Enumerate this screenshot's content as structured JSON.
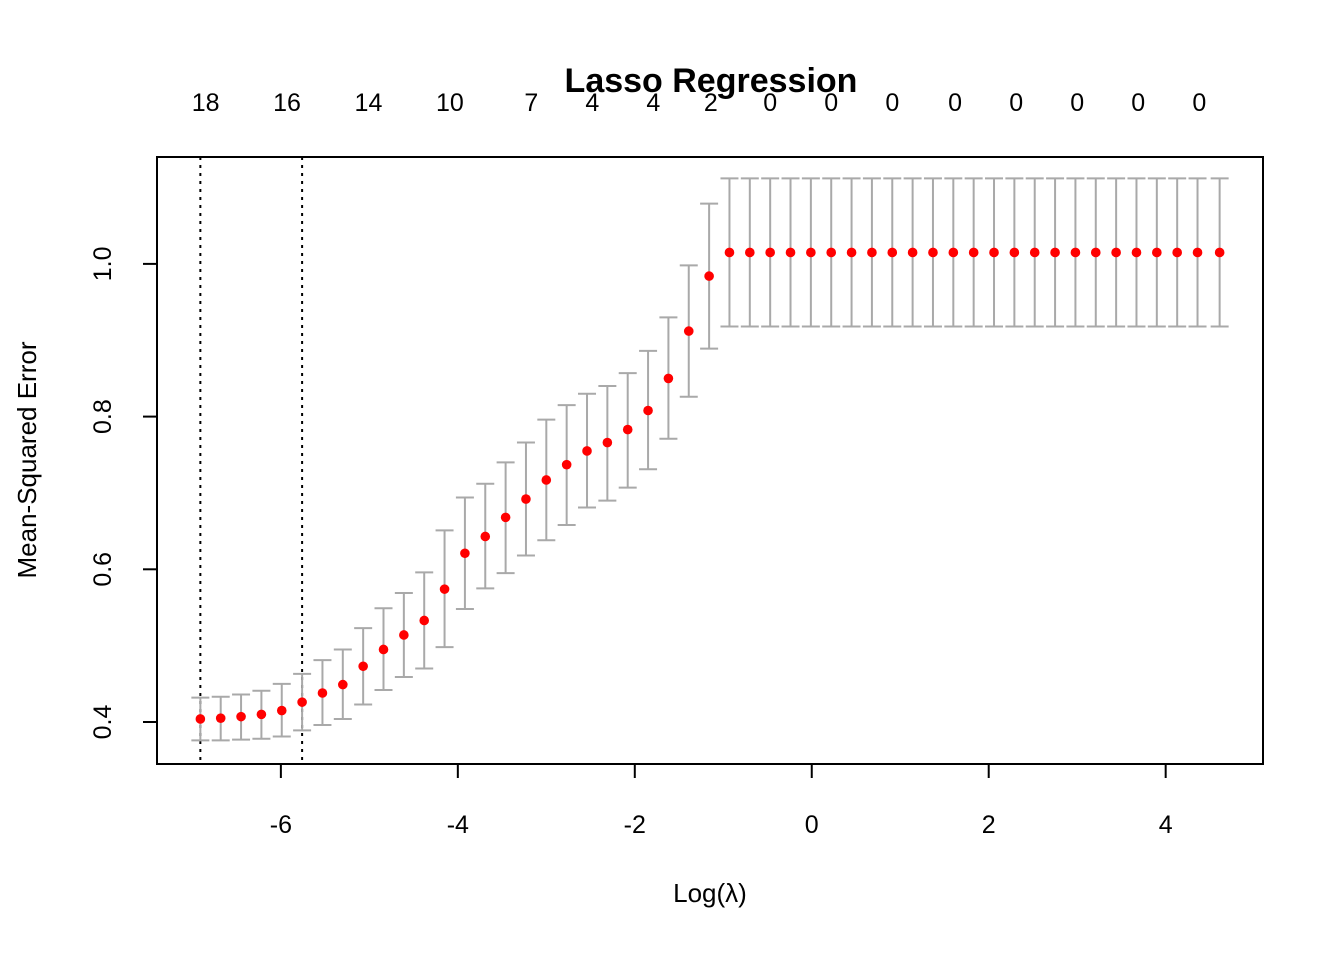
{
  "chart_data": {
    "type": "scatter",
    "title": "Lasso Regression",
    "xlabel": "Log(λ)",
    "ylabel": "Mean-Squared Error",
    "xlim": [
      -7.4,
      5.1
    ],
    "ylim": [
      0.345,
      1.14
    ],
    "x_ticks": [
      -6,
      -4,
      -2,
      0,
      2,
      4
    ],
    "x_tick_labels": [
      "-6",
      "-4",
      "-2",
      "0",
      "2",
      "4"
    ],
    "y_ticks": [
      0.4,
      0.6,
      0.8,
      1.0
    ],
    "y_tick_labels": [
      "0.4",
      "0.6",
      "0.8",
      "1.0"
    ],
    "top_axis": {
      "x": [
        -6.85,
        -5.93,
        -5.01,
        -4.09,
        -3.17,
        -2.48,
        -1.79,
        -1.14,
        -0.47,
        0.22,
        0.91,
        1.62,
        2.31,
        3.0,
        3.69,
        4.38
      ],
      "labels": [
        "18",
        "16",
        "14",
        "10",
        "7",
        "4",
        "4",
        "2",
        "0",
        "0",
        "0",
        "0",
        "0",
        "0",
        "0",
        "0"
      ]
    },
    "vlines": [
      -6.91,
      -5.76
    ],
    "colors": {
      "points": "#ff0000",
      "error_bars": "#a9a9a9",
      "vlines": "#000000"
    },
    "series": [
      {
        "x": [
          -6.91,
          -6.68,
          -6.45,
          -6.22,
          -5.99,
          -5.76,
          -5.53,
          -5.3,
          -5.07,
          -4.84,
          -4.61,
          -4.38,
          -4.15,
          -3.92,
          -3.69,
          -3.46,
          -3.23,
          -3.0,
          -2.77,
          -2.54,
          -2.31,
          -2.08,
          -1.85,
          -1.62,
          -1.39,
          -1.16,
          -0.93,
          -0.7,
          -0.47,
          -0.24,
          -0.01,
          0.22,
          0.45,
          0.68,
          0.91,
          1.14,
          1.37,
          1.6,
          1.83,
          2.06,
          2.29,
          2.52,
          2.75,
          2.98,
          3.21,
          3.44,
          3.67,
          3.9,
          4.13,
          4.36,
          4.61
        ],
        "y": [
          0.404,
          0.405,
          0.407,
          0.41,
          0.415,
          0.426,
          0.438,
          0.449,
          0.473,
          0.495,
          0.514,
          0.533,
          0.574,
          0.621,
          0.643,
          0.668,
          0.692,
          0.717,
          0.737,
          0.755,
          0.766,
          0.783,
          0.808,
          0.85,
          0.912,
          0.984,
          1.015,
          1.015,
          1.015,
          1.015,
          1.015,
          1.015,
          1.015,
          1.015,
          1.015,
          1.015,
          1.015,
          1.015,
          1.015,
          1.015,
          1.015,
          1.015,
          1.015,
          1.015,
          1.015,
          1.015,
          1.015,
          1.015,
          1.015,
          1.015,
          1.015
        ],
        "lower": [
          0.376,
          0.376,
          0.377,
          0.378,
          0.381,
          0.389,
          0.396,
          0.404,
          0.423,
          0.442,
          0.459,
          0.47,
          0.498,
          0.548,
          0.575,
          0.595,
          0.618,
          0.638,
          0.658,
          0.681,
          0.69,
          0.707,
          0.731,
          0.771,
          0.826,
          0.889,
          0.918,
          0.918,
          0.918,
          0.918,
          0.918,
          0.918,
          0.918,
          0.918,
          0.918,
          0.918,
          0.918,
          0.918,
          0.918,
          0.918,
          0.918,
          0.918,
          0.918,
          0.918,
          0.918,
          0.918,
          0.918,
          0.918,
          0.918,
          0.918,
          0.918
        ],
        "upper": [
          0.432,
          0.433,
          0.436,
          0.441,
          0.45,
          0.463,
          0.481,
          0.495,
          0.523,
          0.549,
          0.569,
          0.596,
          0.651,
          0.694,
          0.712,
          0.74,
          0.766,
          0.796,
          0.815,
          0.83,
          0.84,
          0.857,
          0.886,
          0.93,
          0.998,
          1.079,
          1.112,
          1.112,
          1.112,
          1.112,
          1.112,
          1.112,
          1.112,
          1.112,
          1.112,
          1.112,
          1.112,
          1.112,
          1.112,
          1.112,
          1.112,
          1.112,
          1.112,
          1.112,
          1.112,
          1.112,
          1.112,
          1.112,
          1.112,
          1.112,
          1.112
        ]
      }
    ]
  }
}
